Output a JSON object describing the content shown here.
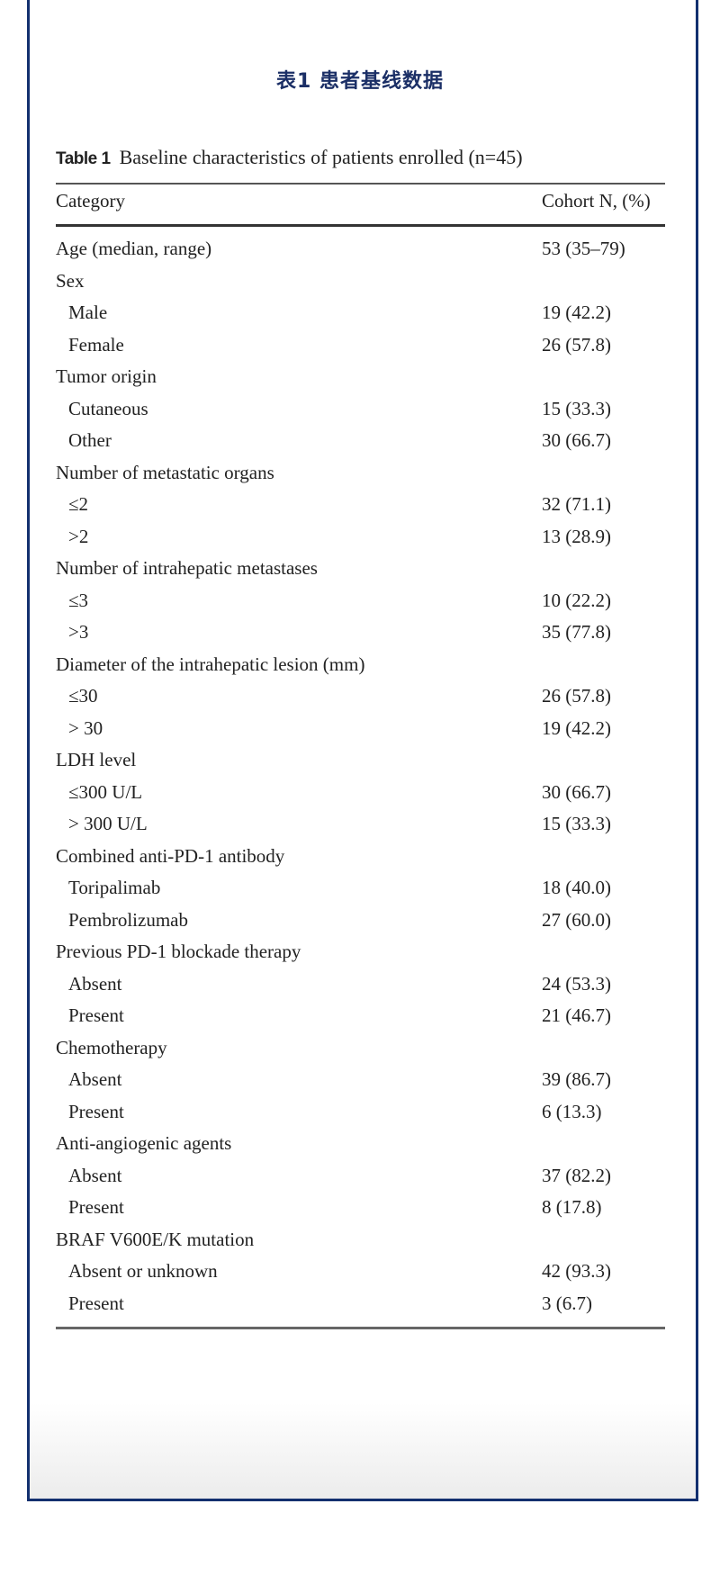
{
  "page_title": "表1  患者基线数据",
  "table": {
    "caption_label": "Table 1",
    "caption_text": "Baseline characteristics of patients enrolled (n=45)",
    "columns": [
      "Category",
      "Cohort N, (%)"
    ],
    "rows": [
      {
        "category": "Age (median, range)",
        "value": "53 (35–79)",
        "indent": false
      },
      {
        "category": "Sex",
        "value": "",
        "indent": false
      },
      {
        "category": "Male",
        "value": "19 (42.2)",
        "indent": true
      },
      {
        "category": "Female",
        "value": "26 (57.8)",
        "indent": true
      },
      {
        "category": "Tumor origin",
        "value": "",
        "indent": false
      },
      {
        "category": "Cutaneous",
        "value": "15 (33.3)",
        "indent": true
      },
      {
        "category": "Other",
        "value": "30 (66.7)",
        "indent": true
      },
      {
        "category": "Number of metastatic organs",
        "value": "",
        "indent": false
      },
      {
        "category": "≤2",
        "value": "32 (71.1)",
        "indent": true
      },
      {
        "category": ">2",
        "value": "13 (28.9)",
        "indent": true
      },
      {
        "category": "Number of intrahepatic metastases",
        "value": "",
        "indent": false
      },
      {
        "category": "≤3",
        "value": "10 (22.2)",
        "indent": true
      },
      {
        "category": ">3",
        "value": "35 (77.8)",
        "indent": true
      },
      {
        "category": "Diameter of the intrahepatic lesion (mm)",
        "value": "",
        "indent": false
      },
      {
        "category": "≤30",
        "value": "26 (57.8)",
        "indent": true
      },
      {
        "category": "> 30",
        "value": "19 (42.2)",
        "indent": true
      },
      {
        "category": "LDH level",
        "value": "",
        "indent": false
      },
      {
        "category": "≤300 U/L",
        "value": "30 (66.7)",
        "indent": true
      },
      {
        "category": "> 300 U/L",
        "value": "15 (33.3)",
        "indent": true
      },
      {
        "category": "Combined anti-PD-1 antibody",
        "value": "",
        "indent": false
      },
      {
        "category": "Toripalimab",
        "value": "18 (40.0)",
        "indent": true
      },
      {
        "category": "Pembrolizumab",
        "value": "27 (60.0)",
        "indent": true
      },
      {
        "category": "Previous PD-1 blockade therapy",
        "value": "",
        "indent": false
      },
      {
        "category": "Absent",
        "value": "24 (53.3)",
        "indent": true
      },
      {
        "category": "Present",
        "value": "21 (46.7)",
        "indent": true
      },
      {
        "category": "Chemotherapy",
        "value": "",
        "indent": false
      },
      {
        "category": "Absent",
        "value": "39 (86.7)",
        "indent": true
      },
      {
        "category": "Present",
        "value": "6 (13.3)",
        "indent": true
      },
      {
        "category": "Anti-angiogenic agents",
        "value": "",
        "indent": false
      },
      {
        "category": "Absent",
        "value": "37 (82.2)",
        "indent": true
      },
      {
        "category": "Present",
        "value": "8 (17.8)",
        "indent": true
      },
      {
        "category": "BRAF V600E/K mutation",
        "value": "",
        "indent": false
      },
      {
        "category": "Absent or unknown",
        "value": "42 (93.3)",
        "indent": true
      },
      {
        "category": "Present",
        "value": "3 (6.7)",
        "indent": true
      }
    ]
  },
  "colors": {
    "frame_border": "#13306f",
    "title": "#1b2f66"
  }
}
